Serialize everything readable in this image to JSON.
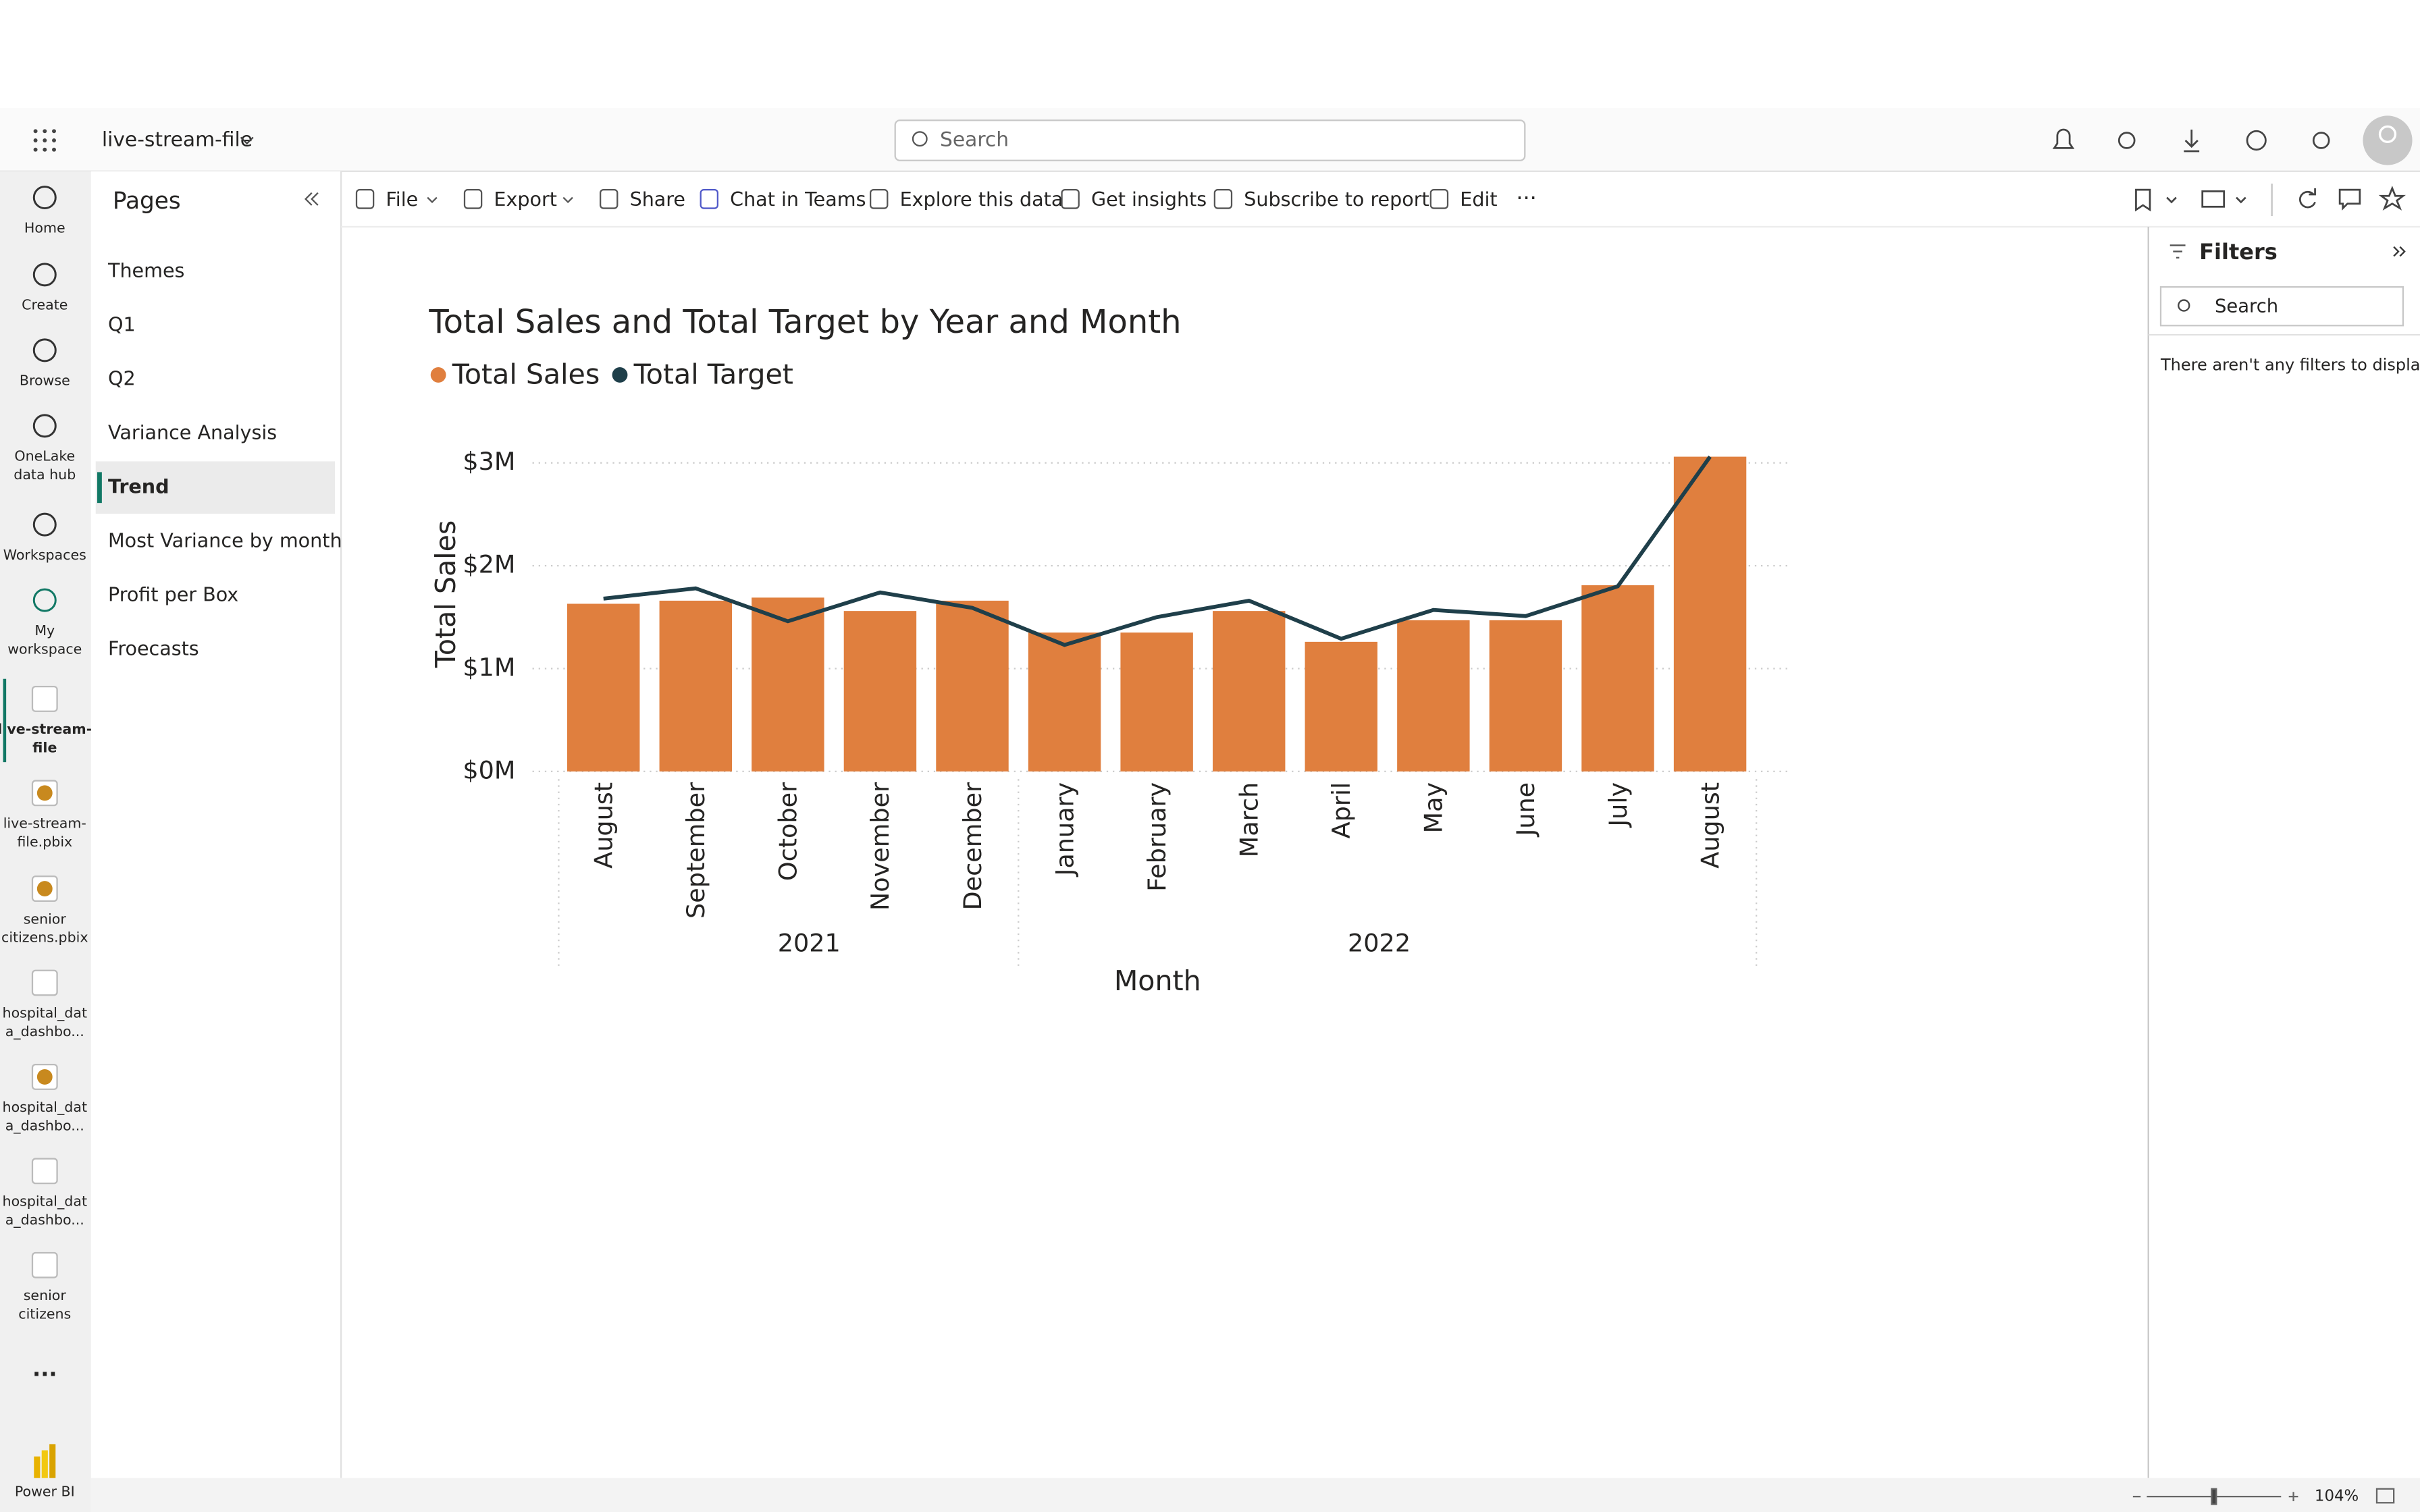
{
  "header": {
    "workspace": "live-stream-file",
    "search": "Search"
  },
  "nav": [
    {
      "lines": [
        "Home"
      ]
    },
    {
      "lines": [
        "Create"
      ]
    },
    {
      "lines": [
        "Browse"
      ]
    },
    {
      "lines": [
        "OneLake",
        "data hub"
      ]
    },
    {
      "lines": [
        "Workspaces"
      ]
    },
    {
      "lines": [
        "My",
        "workspace"
      ]
    },
    {
      "lines": [
        "live-stream-",
        "file"
      ]
    },
    {
      "lines": [
        "live-stream-",
        "file.pbix"
      ]
    },
    {
      "lines": [
        "senior",
        "citizens.pbix"
      ]
    },
    {
      "lines": [
        "hospital_dat",
        "a_dashbo..."
      ]
    },
    {
      "lines": [
        "hospital_dat",
        "a_dashbo..."
      ]
    },
    {
      "lines": [
        "hospital_dat",
        "a_dashbo..."
      ]
    },
    {
      "lines": [
        "senior",
        "citizens"
      ]
    }
  ],
  "nav_more": "...",
  "app_name": "Power BI",
  "pages": {
    "title": "Pages",
    "items": [
      "Themes",
      "Q1",
      "Q2",
      "Variance Analysis",
      "Trend",
      "Most Variance by month",
      "Profit per Box",
      "Froecasts"
    ],
    "selected": 4
  },
  "toolbar": [
    "File",
    "Export",
    "Share",
    "Chat in Teams",
    "Explore this data",
    "Get insights",
    "Subscribe to report",
    "Edit"
  ],
  "toolbar_more": "···",
  "filters": {
    "title": "Filters",
    "search": "Search",
    "empty": "There aren't any filters to display."
  },
  "zoom": "104%",
  "chart_data": {
    "type": "bar_line",
    "title": "Total Sales and Total Target by Year and Month",
    "y_label": "Total Sales",
    "x_label": "Month",
    "categories": [
      "August",
      "September",
      "October",
      "November",
      "December",
      "January",
      "February",
      "March",
      "April",
      "May",
      "June",
      "July",
      "August"
    ],
    "groups": [
      {
        "label": "2021",
        "span": 5
      },
      {
        "label": "2022",
        "span": 8
      }
    ],
    "series": [
      {
        "name": "Total Sales",
        "color": "#e07f3e",
        "kind": "bar",
        "values": [
          1.63,
          1.66,
          1.69,
          1.56,
          1.66,
          1.35,
          1.35,
          1.56,
          1.26,
          1.47,
          1.47,
          1.81,
          3.06
        ]
      },
      {
        "name": "Total Target",
        "color": "#1f3f4a",
        "kind": "line",
        "values": [
          1.68,
          1.78,
          1.46,
          1.74,
          1.59,
          1.23,
          1.5,
          1.66,
          1.29,
          1.57,
          1.51,
          1.8,
          3.06
        ]
      }
    ],
    "ylim": [
      0,
      3
    ],
    "yticks": [
      {
        "value": 0,
        "label": "$0M"
      },
      {
        "value": 1,
        "label": "$1M"
      },
      {
        "value": 2,
        "label": "$2M"
      },
      {
        "value": 3,
        "label": "$3M"
      }
    ],
    "grid": true
  }
}
